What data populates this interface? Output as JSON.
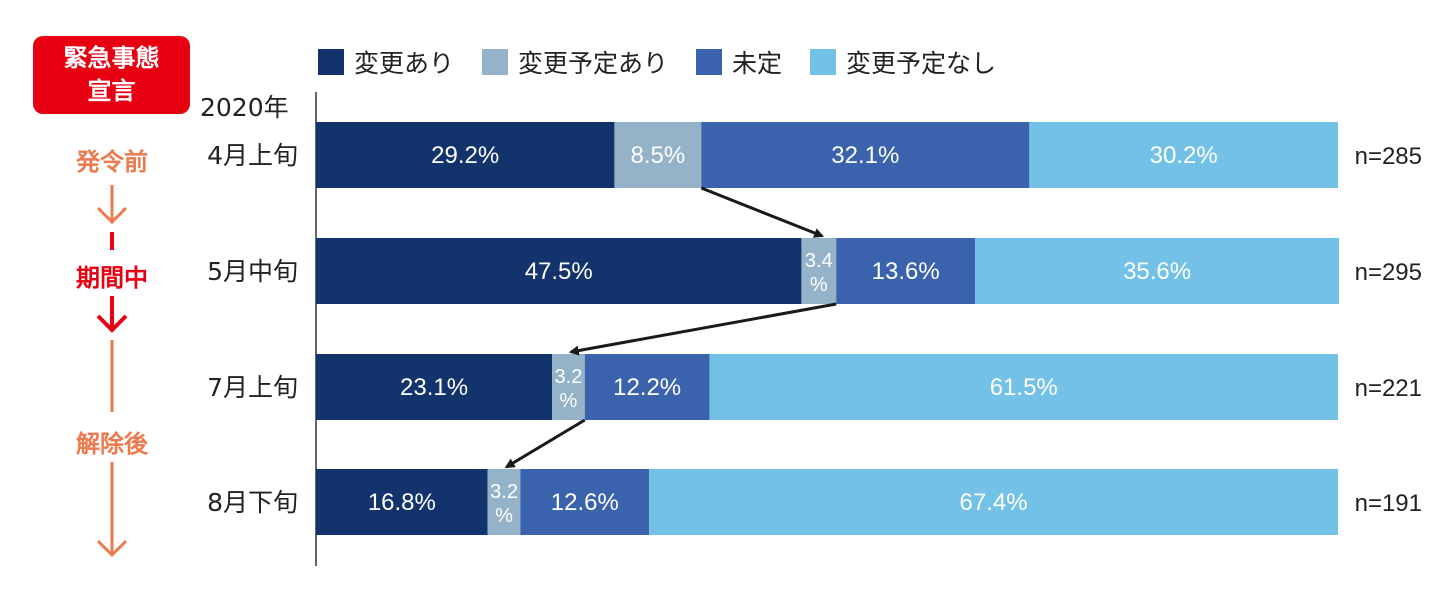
{
  "emergency_badge": {
    "line1": "緊急事態",
    "line2": "宣言"
  },
  "phases": {
    "before": "発令前",
    "during": "期間中",
    "after": "解除後"
  },
  "colors": {
    "badge": "#e60012",
    "phase_before": "#ec7a4e",
    "phase_during": "#e60012",
    "phase_after": "#ec7a4e"
  },
  "chart_data": {
    "type": "bar",
    "orientation": "horizontal",
    "stacked": true,
    "percent": true,
    "year_label": "2020年",
    "categories": [
      "4月上旬",
      "5月中旬",
      "7月上旬",
      "8月下旬"
    ],
    "n_labels": [
      "n=285",
      "n=295",
      "n=221",
      "n=191"
    ],
    "series": [
      {
        "name": "変更あり",
        "color": "#12336c",
        "values": [
          29.2,
          47.5,
          23.1,
          16.8
        ]
      },
      {
        "name": "変更予定あり",
        "color": "#94b3c8",
        "values": [
          8.5,
          3.4,
          3.2,
          3.2
        ]
      },
      {
        "name": "未定",
        "color": "#3a62ad",
        "values": [
          32.1,
          13.6,
          12.2,
          12.6
        ]
      },
      {
        "name": "変更予定なし",
        "color": "#74c1e7",
        "values": [
          30.2,
          35.6,
          61.5,
          67.4
        ]
      }
    ],
    "value_labels": [
      [
        "29.2%",
        "8.5%",
        "32.1%",
        "30.2%"
      ],
      [
        "47.5%",
        "3.4\n%",
        "13.6%",
        "35.6%"
      ],
      [
        "23.1%",
        "3.2\n%",
        "12.2%",
        "61.5%"
      ],
      [
        "16.8%",
        "3.2\n%",
        "12.6%",
        "67.4%"
      ]
    ],
    "xlim": [
      0,
      100
    ],
    "legend_position": "top"
  }
}
